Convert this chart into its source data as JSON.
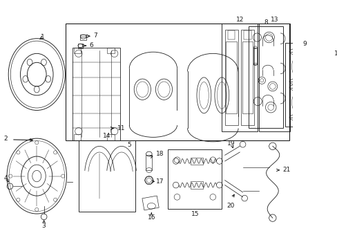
{
  "bg_color": "#ffffff",
  "line_color": "#1a1a1a",
  "fig_width": 4.89,
  "fig_height": 3.6,
  "dpi": 100,
  "lw": 0.65,
  "fontsize": 6.5
}
